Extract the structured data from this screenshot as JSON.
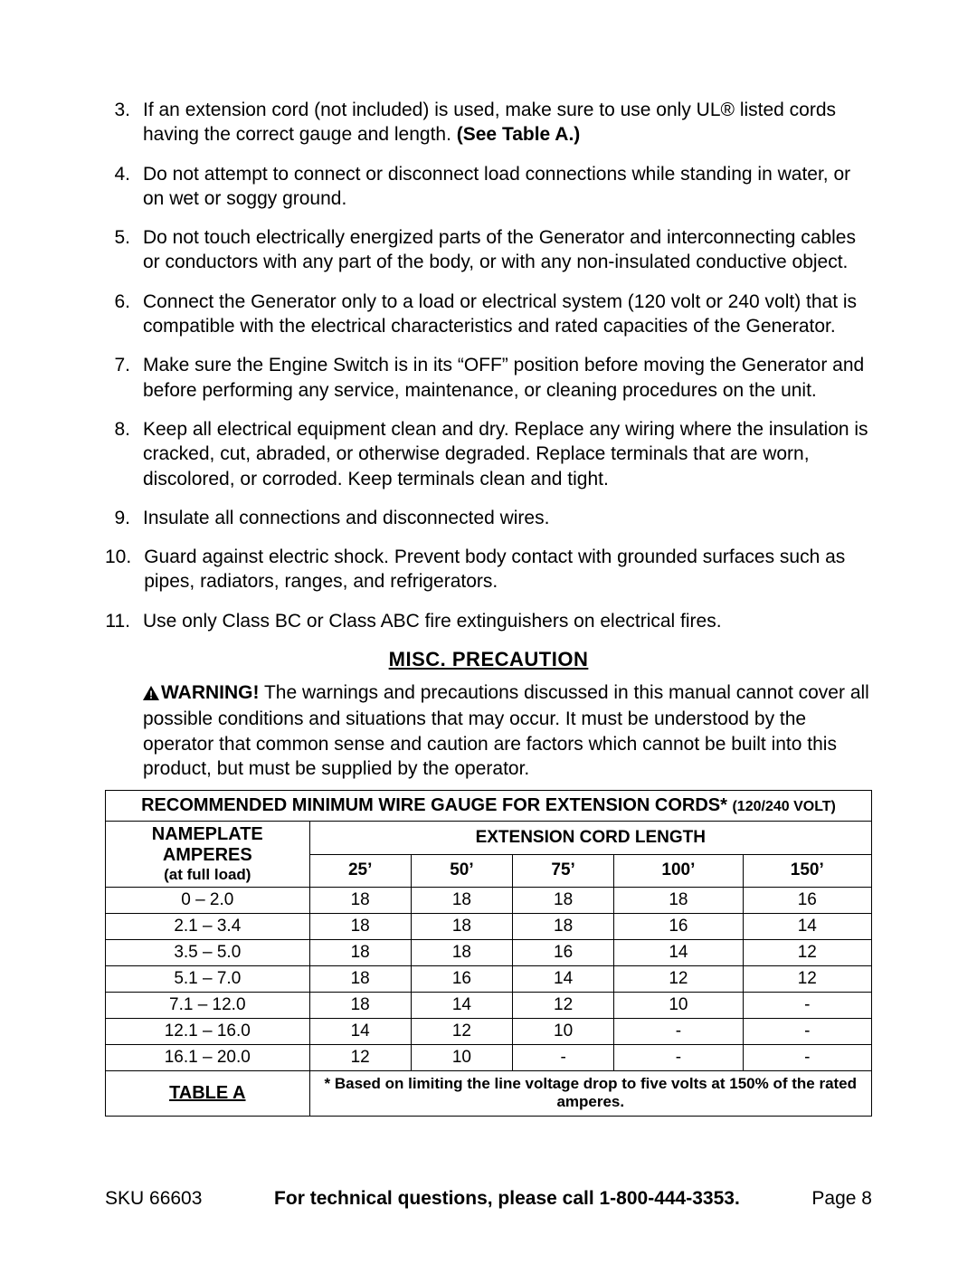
{
  "instructions": [
    {
      "n": "3.",
      "pre": "If an extension cord (not included) is used, make sure to use only UL® listed cords having the correct gauge and length.  ",
      "bold": "(See Table A.)"
    },
    {
      "n": "4.",
      "text": "Do not attempt to connect or disconnect load connections while standing in water, or on wet or soggy ground."
    },
    {
      "n": "5.",
      "text": "Do not touch electrically energized parts of the Generator and interconnecting cables or conductors with any part of the body, or with any non-insulated conductive object."
    },
    {
      "n": "6.",
      "text": "Connect the Generator only to a load or electrical system (120 volt or 240 volt) that is compatible with the electrical characteristics and rated capacities of the Generator."
    },
    {
      "n": "7.",
      "text": "Make sure the Engine Switch is in its “OFF” position before moving the Generator and before performing any service, maintenance, or cleaning procedures on the unit."
    },
    {
      "n": "8.",
      "text": "Keep all electrical equipment clean and dry.  Replace any wiring where the insulation is cracked, cut, abraded, or otherwise degraded.  Replace terminals that are worn, discolored, or corroded.  Keep terminals clean and tight."
    },
    {
      "n": "9.",
      "text": "Insulate all connections and disconnected wires."
    },
    {
      "n": "10.",
      "text": "Guard against electric shock.  Prevent body contact with grounded surfaces such as pipes, radiators, ranges, and refrigerators."
    },
    {
      "n": "11.",
      "text": "Use only Class BC or Class ABC fire extinguishers on electrical fires."
    }
  ],
  "section_heading": "MISC. PRECAUTION",
  "warning": {
    "label": "WARNING!",
    "text": "  The warnings and precautions discussed in this manual cannot cover all possible conditions and situations that may occur.  It must be understood by the operator that common sense and caution are factors which cannot be built into this product, but must be supplied by the operator."
  },
  "table": {
    "title_main": "RECOMMENDED MINIMUM WIRE GAUGE FOR EXTENSION CORDS* ",
    "title_small": "(120/240 VOLT)",
    "np_header": "NAMEPLATE AMPERES",
    "np_sub": "(at full load)",
    "ext_header": "EXTENSION CORD LENGTH",
    "lengths": [
      "25’",
      "50’",
      "75’",
      "100’",
      "150’"
    ],
    "rows": [
      {
        "amps": "0 – 2.0",
        "v": [
          "18",
          "18",
          "18",
          "18",
          "16"
        ]
      },
      {
        "amps": "2.1 – 3.4",
        "v": [
          "18",
          "18",
          "18",
          "16",
          "14"
        ]
      },
      {
        "amps": "3.5 – 5.0",
        "v": [
          "18",
          "18",
          "16",
          "14",
          "12"
        ]
      },
      {
        "amps": "5.1 – 7.0",
        "v": [
          "18",
          "16",
          "14",
          "12",
          "12"
        ]
      },
      {
        "amps": "7.1 – 12.0",
        "v": [
          "18",
          "14",
          "12",
          "10",
          "-"
        ]
      },
      {
        "amps": "12.1 – 16.0",
        "v": [
          "14",
          "12",
          "10",
          "-",
          "-"
        ]
      },
      {
        "amps": "16.1 – 20.0",
        "v": [
          "12",
          "10",
          "-",
          "-",
          "-"
        ]
      }
    ],
    "label": "TABLE A",
    "footnote": "* Based on limiting the line voltage drop to five volts at 150% of the rated amperes."
  },
  "footer": {
    "left": "SKU 66603",
    "mid": "For technical questions, please call 1-800-444-3353.",
    "right": "Page 8"
  },
  "colors": {
    "text": "#000000",
    "bg": "#ffffff",
    "border": "#000000"
  }
}
